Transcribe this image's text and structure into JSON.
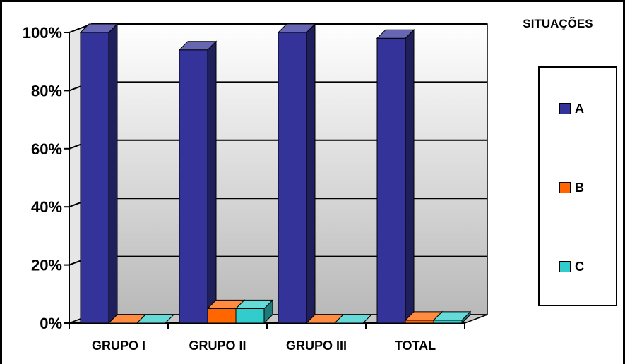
{
  "chart_data": {
    "type": "bar",
    "categories": [
      "GRUPO I",
      "GRUPO II",
      "GRUPO III",
      "TOTAL"
    ],
    "series": [
      {
        "name": "A",
        "values": [
          100,
          94,
          100,
          98
        ],
        "color": "#333399"
      },
      {
        "name": "B",
        "values": [
          0,
          5,
          0,
          1
        ],
        "color": "#ff6600"
      },
      {
        "name": "C",
        "values": [
          0,
          5,
          0,
          1
        ],
        "color": "#33cccc"
      }
    ],
    "ylim": [
      0,
      100
    ],
    "yticks": [
      "0%",
      "20%",
      "40%",
      "60%",
      "80%",
      "100%"
    ],
    "grid": true,
    "legend_title": "SITUAÇÕES",
    "legend_position": "right"
  }
}
